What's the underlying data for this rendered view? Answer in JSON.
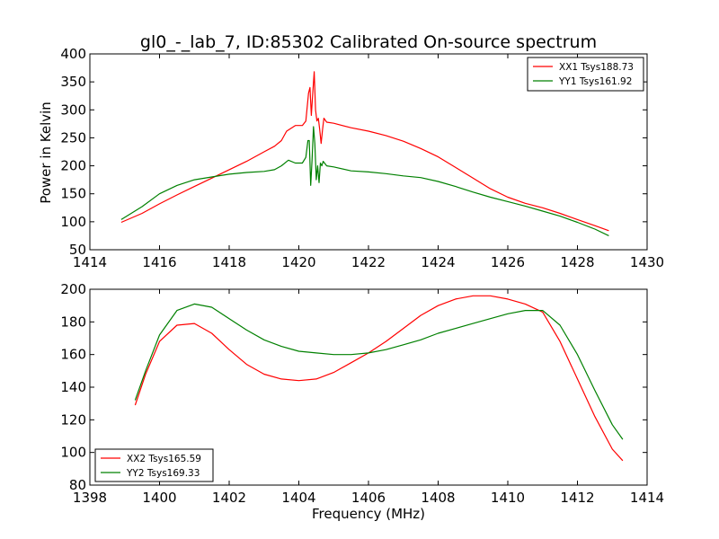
{
  "chart_data": [
    {
      "type": "line",
      "title": "gl0_-_lab_7, ID:85302 Calibrated On-source spectrum",
      "xlabel": "",
      "ylabel": "Power in Kelvin",
      "xlim": [
        1414,
        1430
      ],
      "ylim": [
        50,
        400
      ],
      "xticks": [
        1414,
        1416,
        1418,
        1420,
        1422,
        1424,
        1426,
        1428,
        1430
      ],
      "yticks": [
        50,
        100,
        150,
        200,
        250,
        300,
        350,
        400
      ],
      "grid": false,
      "legend_position": "top-right",
      "series": [
        {
          "name": "XX1 Tsys188.73",
          "color": "#ff0000",
          "x": [
            1414.9,
            1415.5,
            1416.0,
            1416.5,
            1417.0,
            1417.5,
            1418.0,
            1418.5,
            1419.0,
            1419.3,
            1419.5,
            1419.65,
            1419.9,
            1420.1,
            1420.2,
            1420.28,
            1420.32,
            1420.36,
            1420.4,
            1420.44,
            1420.48,
            1420.52,
            1420.56,
            1420.6,
            1420.64,
            1420.68,
            1420.72,
            1420.8,
            1421.0,
            1421.5,
            1422.0,
            1422.5,
            1423.0,
            1423.5,
            1424.0,
            1424.5,
            1425.0,
            1425.5,
            1426.0,
            1426.5,
            1427.0,
            1427.5,
            1428.0,
            1428.5,
            1428.9
          ],
          "y": [
            99,
            115,
            132,
            148,
            163,
            178,
            193,
            208,
            225,
            235,
            245,
            262,
            272,
            272,
            280,
            330,
            340,
            290,
            330,
            368,
            300,
            280,
            285,
            265,
            240,
            265,
            285,
            278,
            276,
            268,
            262,
            254,
            244,
            231,
            216,
            197,
            178,
            159,
            144,
            133,
            125,
            115,
            104,
            93,
            84
          ]
        },
        {
          "name": "YY1 Tsys161.92",
          "color": "#008000",
          "x": [
            1414.9,
            1415.5,
            1416.0,
            1416.5,
            1417.0,
            1417.5,
            1418.0,
            1418.5,
            1419.0,
            1419.3,
            1419.5,
            1419.7,
            1419.9,
            1420.1,
            1420.2,
            1420.26,
            1420.3,
            1420.34,
            1420.38,
            1420.42,
            1420.46,
            1420.5,
            1420.54,
            1420.58,
            1420.62,
            1420.66,
            1420.7,
            1420.8,
            1421.0,
            1421.5,
            1422.0,
            1422.5,
            1423.0,
            1423.5,
            1424.0,
            1424.5,
            1425.0,
            1425.5,
            1426.0,
            1426.5,
            1427.0,
            1427.5,
            1428.0,
            1428.5,
            1428.9
          ],
          "y": [
            104,
            127,
            150,
            165,
            175,
            180,
            185,
            188,
            190,
            193,
            200,
            210,
            205,
            205,
            215,
            245,
            245,
            165,
            210,
            270,
            240,
            175,
            200,
            170,
            205,
            200,
            208,
            200,
            198,
            191,
            189,
            186,
            182,
            179,
            172,
            163,
            153,
            144,
            136,
            128,
            119,
            110,
            99,
            87,
            75
          ]
        }
      ]
    },
    {
      "type": "line",
      "title": "",
      "xlabel": "Frequency (MHz)",
      "ylabel": "",
      "xlim": [
        1398,
        1414
      ],
      "ylim": [
        80,
        200
      ],
      "xticks": [
        1398,
        1400,
        1402,
        1404,
        1406,
        1408,
        1410,
        1412,
        1414
      ],
      "yticks": [
        80,
        100,
        120,
        140,
        160,
        180,
        200
      ],
      "grid": false,
      "legend_position": "bottom-left",
      "series": [
        {
          "name": "XX2 Tsys165.59",
          "color": "#ff0000",
          "x": [
            1399.3,
            1399.6,
            1400.0,
            1400.5,
            1401.0,
            1401.5,
            1402.0,
            1402.5,
            1403.0,
            1403.5,
            1404.0,
            1404.5,
            1405.0,
            1405.5,
            1406.0,
            1406.5,
            1407.0,
            1407.5,
            1408.0,
            1408.5,
            1409.0,
            1409.5,
            1410.0,
            1410.5,
            1411.0,
            1411.5,
            1412.0,
            1412.5,
            1413.0,
            1413.3
          ],
          "y": [
            129,
            148,
            168,
            178,
            179,
            173,
            163,
            154,
            148,
            145,
            144,
            145,
            149,
            155,
            161,
            168,
            176,
            184,
            190,
            194,
            196,
            196,
            194,
            191,
            186,
            168,
            145,
            122,
            102,
            95
          ]
        },
        {
          "name": "YY2 Tsys169.33",
          "color": "#008000",
          "x": [
            1399.3,
            1399.6,
            1400.0,
            1400.5,
            1401.0,
            1401.5,
            1402.0,
            1402.5,
            1403.0,
            1403.5,
            1404.0,
            1404.5,
            1405.0,
            1405.5,
            1406.0,
            1406.5,
            1407.0,
            1407.5,
            1408.0,
            1408.5,
            1409.0,
            1409.5,
            1410.0,
            1410.5,
            1411.0,
            1411.5,
            1412.0,
            1412.5,
            1413.0,
            1413.3
          ],
          "y": [
            132,
            150,
            172,
            187,
            191,
            189,
            182,
            175,
            169,
            165,
            162,
            161,
            160,
            160,
            161,
            163,
            166,
            169,
            173,
            176,
            179,
            182,
            185,
            187,
            187,
            178,
            160,
            138,
            117,
            108
          ]
        }
      ]
    }
  ]
}
